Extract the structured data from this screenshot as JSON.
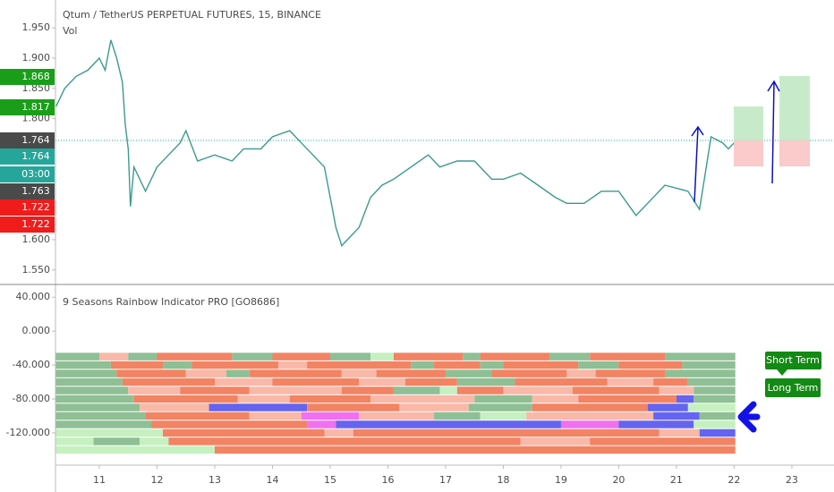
{
  "chart_data": [
    {
      "type": "line",
      "title": "Qtum / TetherUS PERPETUAL FUTURES, 15, BINANCE",
      "subtitle": "Vol",
      "color": "#3b9a8c",
      "xlim": [
        10.24,
        23.73
      ],
      "ylim": [
        1.526,
        1.996
      ],
      "xticks": [
        11,
        12,
        13,
        14,
        15,
        16,
        17,
        18,
        19,
        20,
        21,
        22,
        23
      ],
      "yticks": [
        {
          "value": 1.95,
          "label": "1.950"
        },
        {
          "value": 1.9,
          "label": "1.900"
        },
        {
          "value": 1.85,
          "label": "1.850"
        },
        {
          "value": 1.8,
          "label": "1.800"
        },
        {
          "value": 1.6,
          "label": "1.600"
        },
        {
          "value": 1.55,
          "label": "1.550"
        }
      ],
      "x": [
        10.25,
        10.4,
        10.6,
        10.8,
        11.0,
        11.1,
        11.2,
        11.3,
        11.4,
        11.45,
        11.5,
        11.54,
        11.6,
        11.8,
        12.0,
        12.2,
        12.4,
        12.5,
        12.7,
        13.0,
        13.3,
        13.5,
        13.8,
        14.0,
        14.3,
        14.5,
        14.7,
        14.9,
        15.0,
        15.1,
        15.2,
        15.3,
        15.5,
        15.7,
        15.9,
        16.1,
        16.4,
        16.7,
        16.9,
        17.2,
        17.5,
        17.8,
        18.0,
        18.3,
        18.6,
        18.9,
        19.1,
        19.4,
        19.7,
        20.0,
        20.3,
        20.5,
        20.8,
        21.2,
        21.4,
        21.5,
        21.6,
        21.8,
        21.9,
        22.0
      ],
      "values": [
        1.82,
        1.85,
        1.87,
        1.88,
        1.9,
        1.88,
        1.93,
        1.9,
        1.86,
        1.79,
        1.75,
        1.655,
        1.72,
        1.68,
        1.72,
        1.74,
        1.76,
        1.78,
        1.73,
        1.74,
        1.73,
        1.75,
        1.75,
        1.77,
        1.78,
        1.76,
        1.74,
        1.72,
        1.67,
        1.62,
        1.59,
        1.6,
        1.62,
        1.67,
        1.69,
        1.7,
        1.72,
        1.74,
        1.72,
        1.73,
        1.73,
        1.7,
        1.7,
        1.71,
        1.69,
        1.67,
        1.66,
        1.66,
        1.68,
        1.68,
        1.64,
        1.66,
        1.69,
        1.68,
        1.65,
        1.71,
        1.77,
        1.76,
        1.75,
        1.76
      ],
      "price_tags": [
        {
          "value": 1.868,
          "color": "#1a9e1a"
        },
        {
          "value": 1.817,
          "color": "#1a9e1a"
        },
        {
          "value": 1.764,
          "color": "#4a4a4a"
        },
        {
          "value": 1.764,
          "color": "#26a69a"
        },
        {
          "label": "03:00",
          "color": "#26a69a"
        },
        {
          "value": 1.763,
          "color": "#4a4a4a"
        },
        {
          "value": 1.722,
          "color": "#f01c1c"
        },
        {
          "value": 1.722,
          "color": "#f01c1c"
        }
      ]
    },
    {
      "type": "ribbon",
      "title": "9 Seasons Rainbow Indicator PRO [GO8686]",
      "annotations": [
        "Short Term",
        "Long Term"
      ],
      "ylim": [
        -158,
        55
      ],
      "yticks": [
        {
          "value": 40,
          "label": "40.000"
        },
        {
          "value": 0,
          "label": "0.000"
        },
        {
          "value": -40,
          "label": "-40.000"
        },
        {
          "value": -80,
          "label": "-80.000"
        },
        {
          "value": -120,
          "label": "-120.000"
        }
      ],
      "rows": [
        {
          "level": -30,
          "segments": [
            {
              "from": 10.24,
              "to": 11.0,
              "color": "#8fbf95"
            },
            {
              "from": 11.0,
              "to": 11.5,
              "color": "#f9b8a8"
            },
            {
              "from": 11.5,
              "to": 12.0,
              "color": "#8fbf95"
            },
            {
              "from": 12.0,
              "to": 13.3,
              "color": "#f28363"
            },
            {
              "from": 13.3,
              "to": 14.0,
              "color": "#8fbf95"
            },
            {
              "from": 14.0,
              "to": 15.0,
              "color": "#f28363"
            },
            {
              "from": 15.0,
              "to": 15.7,
              "color": "#8fbf95"
            },
            {
              "from": 15.7,
              "to": 16.1,
              "color": "#c6f0c0"
            },
            {
              "from": 16.1,
              "to": 17.3,
              "color": "#f28363"
            },
            {
              "from": 17.3,
              "to": 17.6,
              "color": "#8fbf95"
            },
            {
              "from": 17.6,
              "to": 18.8,
              "color": "#f28363"
            },
            {
              "from": 18.8,
              "to": 19.5,
              "color": "#8fbf95"
            },
            {
              "from": 19.5,
              "to": 20.8,
              "color": "#f28363"
            },
            {
              "from": 20.8,
              "to": 22.02,
              "color": "#8fbf95"
            }
          ]
        },
        {
          "level": -40,
          "segments": [
            {
              "from": 10.24,
              "to": 11.2,
              "color": "#8fbf95"
            },
            {
              "from": 11.2,
              "to": 12.1,
              "color": "#f28363"
            },
            {
              "from": 12.1,
              "to": 12.6,
              "color": "#8fbf95"
            },
            {
              "from": 12.6,
              "to": 14.1,
              "color": "#f28363"
            },
            {
              "from": 14.1,
              "to": 14.6,
              "color": "#f9b8a8"
            },
            {
              "from": 14.6,
              "to": 16.4,
              "color": "#f28363"
            },
            {
              "from": 16.4,
              "to": 16.8,
              "color": "#8fbf95"
            },
            {
              "from": 16.8,
              "to": 17.6,
              "color": "#f28363"
            },
            {
              "from": 17.6,
              "to": 18.0,
              "color": "#8fbf95"
            },
            {
              "from": 18.0,
              "to": 19.3,
              "color": "#f28363"
            },
            {
              "from": 19.3,
              "to": 20.0,
              "color": "#8fbf95"
            },
            {
              "from": 20.0,
              "to": 21.1,
              "color": "#f28363"
            },
            {
              "from": 21.1,
              "to": 22.02,
              "color": "#8fbf95"
            }
          ]
        },
        {
          "level": -50,
          "segments": [
            {
              "from": 10.24,
              "to": 11.3,
              "color": "#8fbf95"
            },
            {
              "from": 11.3,
              "to": 12.5,
              "color": "#f28363"
            },
            {
              "from": 12.5,
              "to": 13.2,
              "color": "#f9b8a8"
            },
            {
              "from": 13.2,
              "to": 13.6,
              "color": "#8fbf95"
            },
            {
              "from": 13.6,
              "to": 15.2,
              "color": "#f28363"
            },
            {
              "from": 15.2,
              "to": 15.8,
              "color": "#f9b8a8"
            },
            {
              "from": 15.8,
              "to": 17.0,
              "color": "#f28363"
            },
            {
              "from": 17.0,
              "to": 17.8,
              "color": "#8fbf95"
            },
            {
              "from": 17.8,
              "to": 19.1,
              "color": "#f28363"
            },
            {
              "from": 19.1,
              "to": 19.6,
              "color": "#f9b8a8"
            },
            {
              "from": 19.6,
              "to": 20.8,
              "color": "#f28363"
            },
            {
              "from": 20.8,
              "to": 22.02,
              "color": "#8fbf95"
            }
          ]
        },
        {
          "level": -60,
          "segments": [
            {
              "from": 10.24,
              "to": 11.4,
              "color": "#8fbf95"
            },
            {
              "from": 11.4,
              "to": 13.0,
              "color": "#f28363"
            },
            {
              "from": 13.0,
              "to": 14.0,
              "color": "#f9b8a8"
            },
            {
              "from": 14.0,
              "to": 15.5,
              "color": "#f28363"
            },
            {
              "from": 15.5,
              "to": 16.3,
              "color": "#f9b8a8"
            },
            {
              "from": 16.3,
              "to": 17.2,
              "color": "#f28363"
            },
            {
              "from": 17.2,
              "to": 18.2,
              "color": "#8fbf95"
            },
            {
              "from": 18.2,
              "to": 19.8,
              "color": "#f28363"
            },
            {
              "from": 19.8,
              "to": 20.6,
              "color": "#f9b8a8"
            },
            {
              "from": 20.6,
              "to": 21.2,
              "color": "#f28363"
            },
            {
              "from": 21.2,
              "to": 22.02,
              "color": "#8fbf95"
            }
          ]
        },
        {
          "level": -70,
          "segments": [
            {
              "from": 10.24,
              "to": 11.5,
              "color": "#8fbf95"
            },
            {
              "from": 11.5,
              "to": 12.4,
              "color": "#f9b8a8"
            },
            {
              "from": 12.4,
              "to": 13.6,
              "color": "#f28363"
            },
            {
              "from": 13.6,
              "to": 15.2,
              "color": "#f9b8a8"
            },
            {
              "from": 15.2,
              "to": 16.1,
              "color": "#f28363"
            },
            {
              "from": 16.1,
              "to": 16.9,
              "color": "#8fbf95"
            },
            {
              "from": 16.9,
              "to": 17.2,
              "color": "#c6f0c0"
            },
            {
              "from": 17.2,
              "to": 18.0,
              "color": "#f28363"
            },
            {
              "from": 18.0,
              "to": 19.2,
              "color": "#f9b8a8"
            },
            {
              "from": 19.2,
              "to": 20.7,
              "color": "#f28363"
            },
            {
              "from": 20.7,
              "to": 21.3,
              "color": "#f9b8a8"
            },
            {
              "from": 21.3,
              "to": 22.02,
              "color": "#8fbf95"
            }
          ]
        },
        {
          "level": -80,
          "segments": [
            {
              "from": 10.24,
              "to": 11.6,
              "color": "#8fbf95"
            },
            {
              "from": 11.6,
              "to": 13.4,
              "color": "#f28363"
            },
            {
              "from": 13.4,
              "to": 14.3,
              "color": "#f9b8a8"
            },
            {
              "from": 14.3,
              "to": 15.7,
              "color": "#f28363"
            },
            {
              "from": 15.7,
              "to": 17.5,
              "color": "#f9b8a8"
            },
            {
              "from": 17.5,
              "to": 18.5,
              "color": "#8fbf95"
            },
            {
              "from": 18.5,
              "to": 19.3,
              "color": "#f9b8a8"
            },
            {
              "from": 19.3,
              "to": 21.0,
              "color": "#f28363"
            },
            {
              "from": 21.0,
              "to": 21.3,
              "color": "#6464f0"
            },
            {
              "from": 21.3,
              "to": 22.02,
              "color": "#8fbf95"
            }
          ]
        },
        {
          "level": -90,
          "segments": [
            {
              "from": 10.24,
              "to": 11.7,
              "color": "#8fbf95"
            },
            {
              "from": 11.7,
              "to": 12.9,
              "color": "#f9b8a8"
            },
            {
              "from": 12.9,
              "to": 14.6,
              "color": "#6464f0"
            },
            {
              "from": 14.6,
              "to": 16.2,
              "color": "#f28363"
            },
            {
              "from": 16.2,
              "to": 17.4,
              "color": "#f9b8a8"
            },
            {
              "from": 17.4,
              "to": 18.5,
              "color": "#8fbf95"
            },
            {
              "from": 18.5,
              "to": 20.5,
              "color": "#f28363"
            },
            {
              "from": 20.5,
              "to": 21.2,
              "color": "#6464f0"
            },
            {
              "from": 21.2,
              "to": 22.02,
              "color": "#c6f0c0"
            }
          ]
        },
        {
          "level": -100,
          "segments": [
            {
              "from": 10.24,
              "to": 11.8,
              "color": "#8fbf95"
            },
            {
              "from": 11.8,
              "to": 13.6,
              "color": "#f28363"
            },
            {
              "from": 13.6,
              "to": 14.5,
              "color": "#f9b8a8"
            },
            {
              "from": 14.5,
              "to": 15.5,
              "color": "#f070f0"
            },
            {
              "from": 15.5,
              "to": 16.8,
              "color": "#f9b8a8"
            },
            {
              "from": 16.8,
              "to": 17.6,
              "color": "#8fbf95"
            },
            {
              "from": 17.6,
              "to": 18.4,
              "color": "#c6f0c0"
            },
            {
              "from": 18.4,
              "to": 20.6,
              "color": "#f9b8a8"
            },
            {
              "from": 20.6,
              "to": 21.4,
              "color": "#6464f0"
            },
            {
              "from": 21.4,
              "to": 22.02,
              "color": "#8fbf95"
            }
          ]
        },
        {
          "level": -110,
          "segments": [
            {
              "from": 10.24,
              "to": 11.9,
              "color": "#8fbf95"
            },
            {
              "from": 11.9,
              "to": 14.6,
              "color": "#f28363"
            },
            {
              "from": 14.6,
              "to": 15.1,
              "color": "#f070f0"
            },
            {
              "from": 15.1,
              "to": 19.0,
              "color": "#6464f0"
            },
            {
              "from": 19.0,
              "to": 20.0,
              "color": "#f070f0"
            },
            {
              "from": 20.0,
              "to": 21.3,
              "color": "#6464f0"
            },
            {
              "from": 21.3,
              "to": 22.02,
              "color": "#c6f0c0"
            }
          ]
        },
        {
          "level": -120,
          "segments": [
            {
              "from": 10.24,
              "to": 12.1,
              "color": "#c6f0c0"
            },
            {
              "from": 12.1,
              "to": 14.9,
              "color": "#f28363"
            },
            {
              "from": 14.9,
              "to": 15.4,
              "color": "#f9b8a8"
            },
            {
              "from": 15.4,
              "to": 20.7,
              "color": "#f28363"
            },
            {
              "from": 20.7,
              "to": 21.4,
              "color": "#f9b8a8"
            },
            {
              "from": 21.4,
              "to": 22.02,
              "color": "#6464f0"
            }
          ]
        },
        {
          "level": -130,
          "segments": [
            {
              "from": 10.24,
              "to": 10.9,
              "color": "#c6f0c0"
            },
            {
              "from": 10.9,
              "to": 11.7,
              "color": "#8fbf95"
            },
            {
              "from": 11.7,
              "to": 12.2,
              "color": "#c6f0c0"
            },
            {
              "from": 12.2,
              "to": 18.3,
              "color": "#f28363"
            },
            {
              "from": 18.3,
              "to": 19.5,
              "color": "#f9b8a8"
            },
            {
              "from": 19.5,
              "to": 22.02,
              "color": "#f28363"
            }
          ]
        },
        {
          "level": -140,
          "segments": [
            {
              "from": 10.24,
              "to": 13.0,
              "color": "#c6f0c0"
            },
            {
              "from": 13.0,
              "to": 22.02,
              "color": "#f28363"
            }
          ]
        }
      ]
    }
  ]
}
